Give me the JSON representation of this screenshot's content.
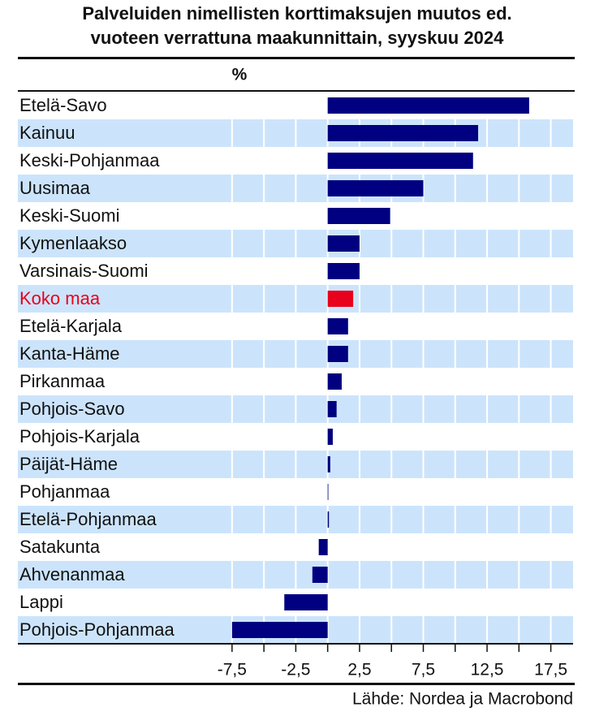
{
  "chart_data": {
    "type": "barh",
    "title": [
      "Palveluiden nimellisten korttimaksujen muutos ed.",
      "vuoteen verrattuna maakunnittain, syyskuu 2024"
    ],
    "unit_label": "%",
    "source": "Lähde: Nordea ja Macrobond",
    "categories": [
      "Etelä-Savo",
      "Kainuu",
      "Keski-Pohjanmaa",
      "Uusimaa",
      "Keski-Suomi",
      "Kymenlaakso",
      "Varsinais-Suomi",
      "Koko maa",
      "Etelä-Karjala",
      "Kanta-Häme",
      "Pirkanmaa",
      "Pohjois-Savo",
      "Pohjois-Karjala",
      "Päijät-Häme",
      "Pohjanmaa",
      "Etelä-Pohjanmaa",
      "Satakunta",
      "Ahvenanmaa",
      "Lappi",
      "Pohjois-Pohjanmaa"
    ],
    "values": [
      15.8,
      11.8,
      11.4,
      7.5,
      4.9,
      2.5,
      2.5,
      2.0,
      1.6,
      1.6,
      1.1,
      0.7,
      0.4,
      0.2,
      0.0,
      0.1,
      -0.7,
      -1.2,
      -3.4,
      -7.5
    ],
    "colors": [
      "#000080",
      "#000080",
      "#000080",
      "#000080",
      "#000080",
      "#000080",
      "#000080",
      "#e8001c",
      "#000080",
      "#000080",
      "#000080",
      "#000080",
      "#000080",
      "#000080",
      "#000080",
      "#000080",
      "#000080",
      "#000080",
      "#000080",
      "#000080"
    ],
    "xlim": [
      -8,
      19.5
    ],
    "xticks": [
      {
        "value": -7.5,
        "label": "-7,5"
      },
      {
        "value": -2.5,
        "label": "-2,5"
      },
      {
        "value": 2.5,
        "label": "2,5"
      },
      {
        "value": 7.5,
        "label": "7,5"
      },
      {
        "value": 12.5,
        "label": "12,5"
      },
      {
        "value": 17.5,
        "label": "17,5"
      }
    ],
    "minor_xticks": [
      -5,
      0,
      5,
      10,
      15
    ],
    "band_color": "#cce4fb"
  }
}
